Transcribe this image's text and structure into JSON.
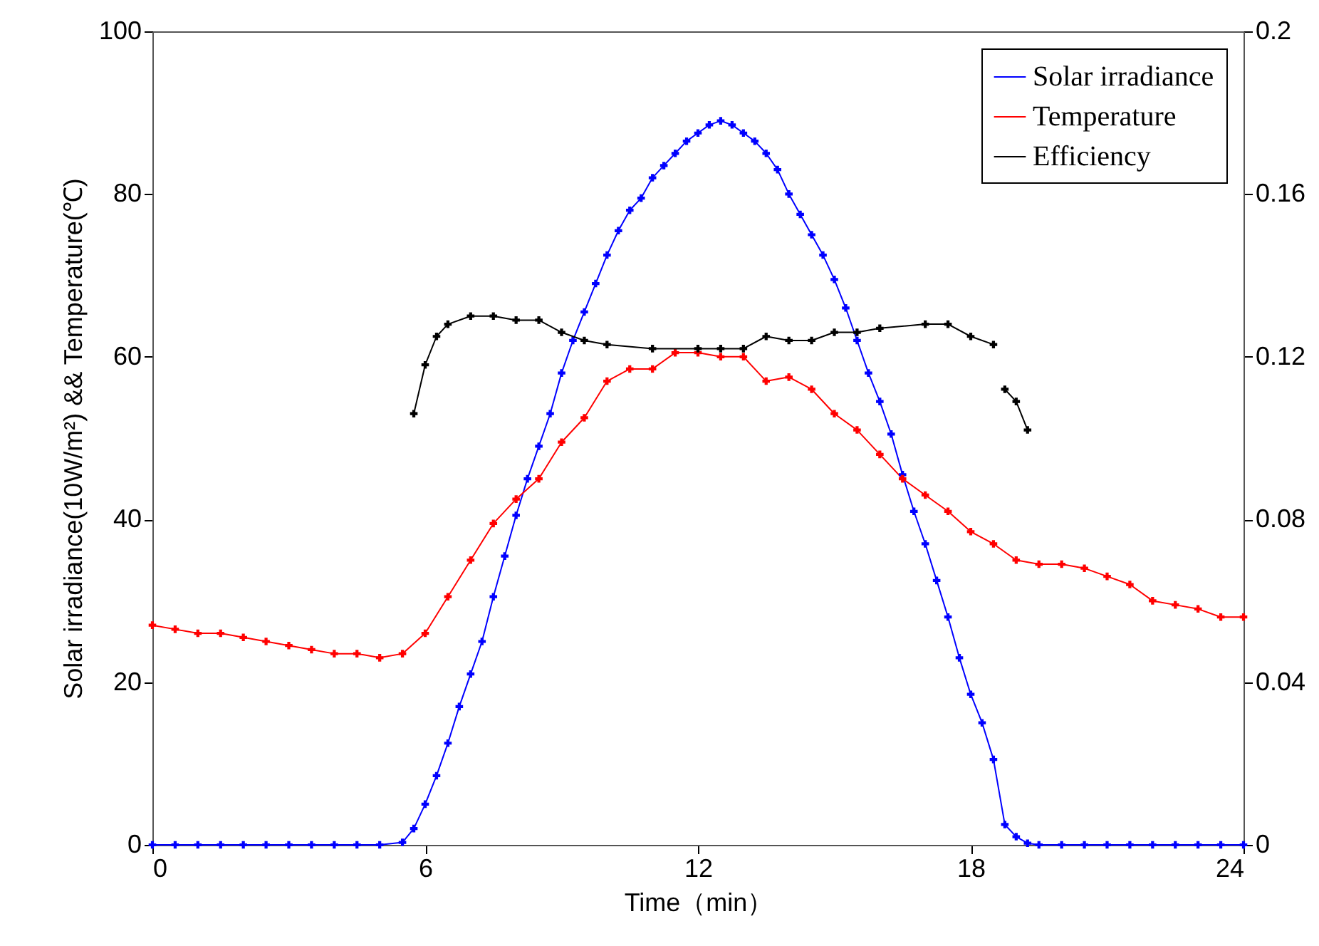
{
  "chart_data": {
    "type": "line",
    "xlabel": "Time（min）",
    "ylabel": "Solar irradiance(10W/m²) && Temperature(℃)",
    "legend": "top right",
    "marker": "cross",
    "line_style": "solid",
    "grid": false,
    "xlim": [
      0,
      24
    ],
    "xticks": [
      0,
      6,
      12,
      18,
      24
    ],
    "ylim": [
      0,
      100
    ],
    "yticks": [
      0,
      20,
      40,
      60,
      80,
      100
    ],
    "y2lim": [
      0,
      0.2
    ],
    "y2ticks": [
      0,
      0.04,
      0.08,
      0.12,
      0.16,
      0.2
    ],
    "series": [
      {
        "name": "Solar irradiance",
        "color": "#0000ff",
        "x": [
          0,
          0.5,
          1,
          1.5,
          2,
          2.5,
          3,
          3.5,
          4,
          4.5,
          5,
          5.5,
          5.75,
          6,
          6.25,
          6.5,
          6.75,
          7,
          7.25,
          7.5,
          7.75,
          8,
          8.25,
          8.5,
          8.75,
          9,
          9.25,
          9.5,
          9.75,
          10,
          10.25,
          10.5,
          10.75,
          11,
          11.25,
          11.5,
          11.75,
          12,
          12.25,
          12.5,
          12.75,
          13,
          13.25,
          13.5,
          13.75,
          14,
          14.25,
          14.5,
          14.75,
          15,
          15.25,
          15.5,
          15.75,
          16,
          16.25,
          16.5,
          16.75,
          17,
          17.25,
          17.5,
          17.75,
          18,
          18.25,
          18.5,
          18.75,
          19,
          19.25,
          19.5,
          20,
          20.5,
          21,
          21.5,
          22,
          22.5,
          23,
          23.5,
          24
        ],
        "values": [
          0,
          0,
          0,
          0,
          0,
          0,
          0,
          0,
          0,
          0,
          0,
          0.3,
          2,
          5,
          8.5,
          12.5,
          17,
          21,
          25,
          30.5,
          35.5,
          40.5,
          45,
          49,
          53,
          58,
          62,
          65.5,
          69,
          72.5,
          75.5,
          78,
          79.5,
          82,
          83.5,
          85,
          86.5,
          87.5,
          88.5,
          89,
          88.5,
          87.5,
          86.5,
          85,
          83,
          80,
          77.5,
          75,
          72.5,
          69.5,
          66,
          62,
          58,
          54.5,
          50.5,
          45.5,
          41,
          37,
          32.5,
          28,
          23,
          18.5,
          15,
          10.5,
          2.5,
          1,
          0.2,
          0,
          0,
          0,
          0,
          0,
          0,
          0,
          0,
          0,
          0
        ]
      },
      {
        "name": "Temperature",
        "color": "#ff0000",
        "x": [
          0,
          0.5,
          1,
          1.5,
          2,
          2.5,
          3,
          3.5,
          4,
          4.5,
          5,
          5.5,
          6,
          6.5,
          7,
          7.5,
          8,
          8.5,
          9,
          9.5,
          10,
          10.5,
          11,
          11.5,
          12,
          12.5,
          13,
          13.5,
          14,
          14.5,
          15,
          15.5,
          16,
          16.5,
          17,
          17.5,
          18,
          18.5,
          19,
          19.5,
          20,
          20.5,
          21,
          21.5,
          22,
          22.5,
          23,
          23.5,
          24
        ],
        "values": [
          27,
          26.5,
          26,
          26,
          25.5,
          25,
          24.5,
          24,
          23.5,
          23.5,
          23,
          23.5,
          26,
          30.5,
          35,
          39.5,
          42.5,
          45,
          49.5,
          52.5,
          57,
          58.5,
          58.5,
          60.5,
          60.5,
          60,
          60,
          57,
          57.5,
          56,
          53,
          51,
          48,
          45,
          43,
          41,
          38.5,
          37,
          35,
          34.5,
          34.5,
          34,
          33,
          32,
          30,
          29.5,
          29,
          28,
          28
        ]
      },
      {
        "name": "Efficiency",
        "color": "#000000",
        "axis": "y2",
        "x": [
          5.75,
          6,
          6.25,
          6.5,
          7,
          7.5,
          8,
          8.5,
          9,
          9.5,
          10,
          11,
          12,
          12.5,
          13,
          13.5,
          14,
          14.5,
          15,
          15.5,
          16,
          17,
          17.5,
          18,
          18.5,
          18.6,
          18.75,
          19,
          19.25
        ],
        "values": [
          0.106,
          0.118,
          0.125,
          0.128,
          0.13,
          0.13,
          0.129,
          0.129,
          0.126,
          0.124,
          0.123,
          0.122,
          0.122,
          0.122,
          0.122,
          0.125,
          0.124,
          0.124,
          0.126,
          0.126,
          0.127,
          0.128,
          0.128,
          0.125,
          0.123,
          null,
          0.112,
          0.109,
          0.102
        ]
      }
    ]
  }
}
